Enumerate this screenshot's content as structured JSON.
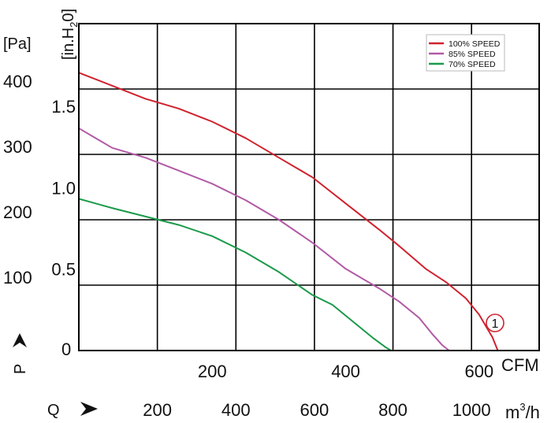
{
  "chart_data": {
    "type": "line",
    "title": "",
    "xlabel": "Q",
    "ylabel": "P",
    "x_unit_primary": "CFM",
    "x_unit_secondary": "m³/h",
    "y_unit_left": "[Pa]",
    "y_unit_inner": "[in.H₂0]",
    "x_ticks_cfm": [
      "200",
      "400",
      "600"
    ],
    "x_ticks_m3h": [
      "200",
      "400",
      "600",
      "800",
      "1000"
    ],
    "y_ticks_pa": [
      "0",
      "100",
      "200",
      "300",
      "400"
    ],
    "y_ticks_inh2o": [
      "0.5",
      "1.0",
      "1.5"
    ],
    "xlim_cfm": [
      0,
      690
    ],
    "ylim_pa": [
      0,
      500
    ],
    "grid": true,
    "legend_position": "top-right",
    "series": [
      {
        "name": "100% SPEED",
        "color": "#d0222e",
        "x": [
          0,
          50,
          100,
          150,
          200,
          250,
          300,
          350,
          400,
          450,
          480,
          520,
          550,
          580,
          600,
          620,
          628
        ],
        "y": [
          425,
          405,
          385,
          370,
          350,
          325,
          295,
          265,
          225,
          185,
          160,
          125,
          105,
          80,
          55,
          20,
          0
        ]
      },
      {
        "name": "85% SPEED",
        "color": "#b25aa6",
        "x": [
          0,
          50,
          100,
          150,
          200,
          250,
          300,
          350,
          400,
          450,
          480,
          510,
          530,
          545,
          555
        ],
        "y": [
          340,
          310,
          295,
          275,
          255,
          230,
          200,
          165,
          125,
          95,
          75,
          50,
          25,
          8,
          0
        ]
      },
      {
        "name": "70% SPEED",
        "color": "#1a9a4a",
        "x": [
          0,
          50,
          100,
          150,
          200,
          250,
          300,
          350,
          380,
          410,
          440,
          460,
          468
        ],
        "y": [
          232,
          218,
          205,
          192,
          175,
          150,
          120,
          85,
          70,
          45,
          20,
          5,
          0
        ]
      }
    ],
    "annotations": [
      {
        "text": "1",
        "color": "#d0222e"
      }
    ]
  }
}
